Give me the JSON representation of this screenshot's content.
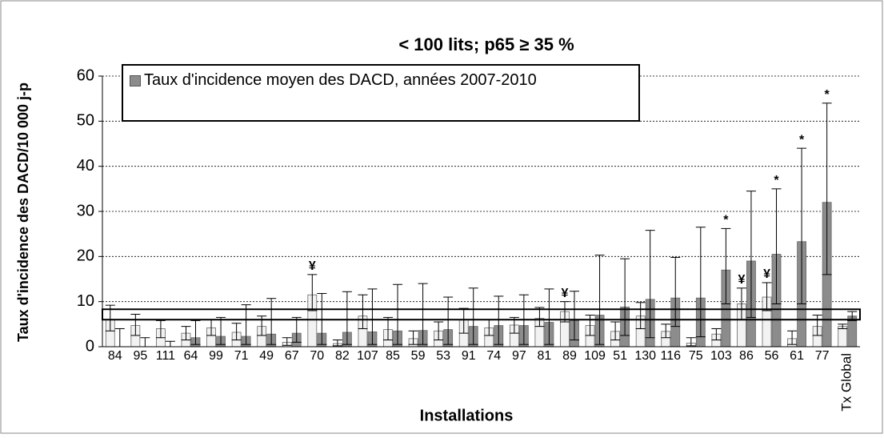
{
  "chart_data": {
    "type": "bar",
    "title": "< 100 lits; p65 ≥ 35 %",
    "y_label": "Taux d'incidence des DACD/10 000 j-p",
    "x_label": "Installations",
    "categories": [
      "84",
      "95",
      "111",
      "64",
      "99",
      "71",
      "49",
      "67",
      "70",
      "82",
      "107",
      "85",
      "59",
      "53",
      "91",
      "74",
      "97",
      "81",
      "89",
      "109",
      "51",
      "130",
      "116",
      "75",
      "103",
      "86",
      "56",
      "61",
      "77",
      "Tx Global"
    ],
    "series": [
      {
        "color": "#f2f2f2",
        "values": [
          6,
          4.7,
          4,
          3,
          4.2,
          3.2,
          4.5,
          1,
          11.5,
          0.7,
          6.8,
          3.8,
          1.8,
          3.5,
          6,
          4.2,
          4.8,
          6.3,
          7.8,
          4.7,
          3.4,
          6.8,
          3.4,
          0.8,
          2.8,
          9.5,
          11,
          1.8,
          4.5,
          4.5
        ],
        "ci_low": [
          3.5,
          2.5,
          2,
          1.5,
          2.5,
          1.5,
          2.5,
          0.3,
          8,
          0.2,
          4,
          1.5,
          0.5,
          1.5,
          3,
          2.5,
          3,
          4.5,
          5.5,
          2.5,
          1.5,
          4,
          2,
          0.2,
          1.5,
          6,
          8,
          0.5,
          2.5,
          4
        ],
        "ci_high": [
          9.2,
          7.2,
          5.8,
          4.5,
          6,
          5.2,
          6.8,
          2,
          16,
          1.5,
          11.5,
          6.5,
          3.5,
          5.5,
          8.5,
          6,
          6.5,
          8.7,
          10,
          7,
          5.5,
          9.8,
          5,
          2,
          4,
          13,
          14.2,
          3.5,
          7,
          5
        ],
        "annotations": [
          null,
          null,
          null,
          null,
          null,
          null,
          null,
          null,
          "¥",
          null,
          null,
          null,
          null,
          null,
          null,
          null,
          null,
          null,
          "¥",
          null,
          null,
          null,
          null,
          null,
          null,
          "¥",
          "¥",
          null,
          null,
          null
        ]
      },
      {
        "name": "Taux d'incidence moyen des DACD, années 2007-2010",
        "color": "#8c8c8c",
        "values": [
          0,
          0,
          0,
          2,
          2.3,
          2.3,
          2.8,
          3,
          3,
          3.2,
          3.3,
          3.5,
          3.6,
          3.8,
          4.5,
          4.7,
          4.7,
          5.4,
          5.8,
          7,
          8.8,
          10.5,
          10.8,
          10.8,
          17,
          19,
          20.5,
          23.3,
          32,
          6.8
        ],
        "ci_low": [
          0,
          0,
          0,
          0.5,
          0.5,
          0.5,
          0.5,
          1,
          0.5,
          0.5,
          0.5,
          0.5,
          0.5,
          0.5,
          0.5,
          0.5,
          0.5,
          0.5,
          1.5,
          0.5,
          2.5,
          2,
          4.5,
          2.2,
          9.5,
          6.5,
          9.5,
          9.5,
          16,
          5.8
        ],
        "ci_high": [
          4,
          2,
          1.2,
          5.8,
          6.5,
          9.3,
          10.7,
          6.5,
          11.8,
          12.2,
          12.8,
          13.8,
          14,
          11,
          13,
          11.2,
          11.5,
          12.8,
          12.3,
          20.3,
          19.5,
          25.8,
          19.8,
          26.5,
          26.2,
          34.5,
          35,
          44,
          54,
          7.8
        ],
        "annotations": [
          null,
          null,
          null,
          null,
          null,
          null,
          null,
          null,
          null,
          null,
          null,
          null,
          null,
          null,
          null,
          null,
          null,
          null,
          null,
          null,
          null,
          null,
          null,
          null,
          "*",
          null,
          "*",
          "*",
          "*",
          null
        ]
      }
    ],
    "reference_band": [
      6,
      8.3
    ],
    "ylim": [
      0,
      60
    ],
    "yticks": [
      0,
      10,
      20,
      30,
      40,
      50,
      60
    ],
    "grid": true
  }
}
